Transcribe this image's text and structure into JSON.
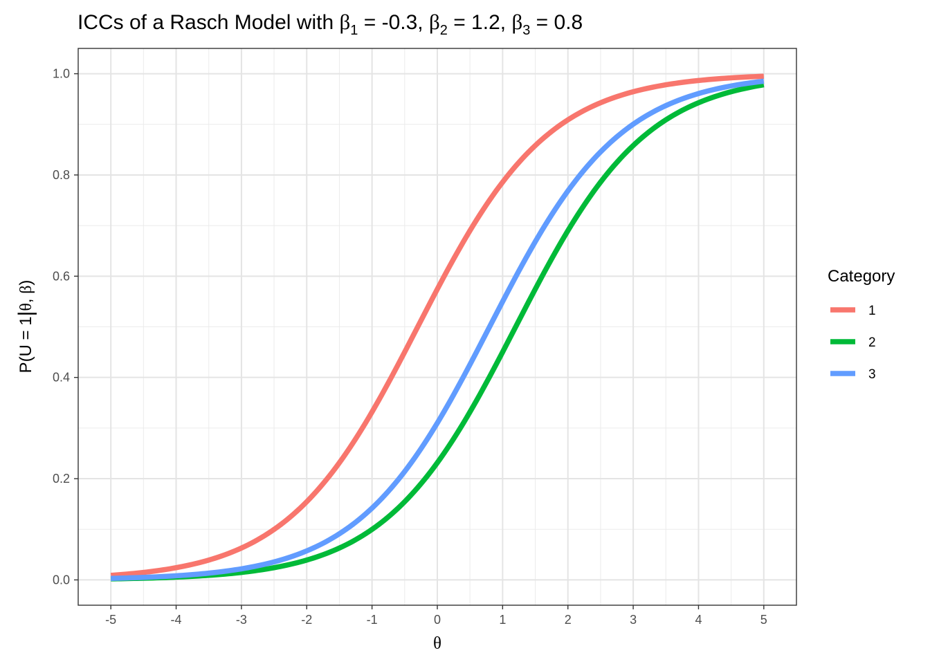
{
  "chart_data": {
    "type": "line",
    "title_parts": {
      "prefix": "ICCs of a Rasch Model with ",
      "beta_symbol": "β",
      "items": [
        {
          "subscript": "1",
          "text": " = -0.3"
        },
        {
          "subscript": "2",
          "text": " = 1.2"
        },
        {
          "subscript": "3",
          "text": " = 0.8"
        }
      ],
      "separator": ", "
    },
    "xlabel": "θ",
    "ylabel_parts": {
      "prefix": "P(U = 1",
      "bar": "|",
      "theta": "θ",
      "comma": ", ",
      "beta": "β",
      "close": ")"
    },
    "xlim": [
      -5.5,
      5.5
    ],
    "ylim": [
      -0.05,
      1.05
    ],
    "x_ticks": [
      -5,
      -4,
      -3,
      -2,
      -1,
      0,
      1,
      2,
      3,
      4,
      5
    ],
    "x_tick_labels": [
      "-5",
      "-4",
      "-3",
      "-2",
      "-1",
      "0",
      "1",
      "2",
      "3",
      "4",
      "5"
    ],
    "x_minor_ticks": [
      -4.5,
      -3.5,
      -2.5,
      -1.5,
      -0.5,
      0.5,
      1.5,
      2.5,
      3.5,
      4.5
    ],
    "y_ticks": [
      0.0,
      0.2,
      0.4,
      0.6,
      0.8,
      1.0
    ],
    "y_tick_labels": [
      "0.0",
      "0.2",
      "0.4",
      "0.6",
      "0.8",
      "1.0"
    ],
    "y_minor_ticks": [
      0.1,
      0.3,
      0.5,
      0.7,
      0.9
    ],
    "theta_range": [
      -5,
      5
    ],
    "series": [
      {
        "name": "1",
        "beta": -0.3,
        "color": "#F8766D"
      },
      {
        "name": "2",
        "beta": 1.2,
        "color": "#00BA38"
      },
      {
        "name": "3",
        "beta": 0.8,
        "color": "#619CFF"
      }
    ],
    "legend": {
      "title": "Category",
      "position": "right"
    },
    "grid": true
  }
}
